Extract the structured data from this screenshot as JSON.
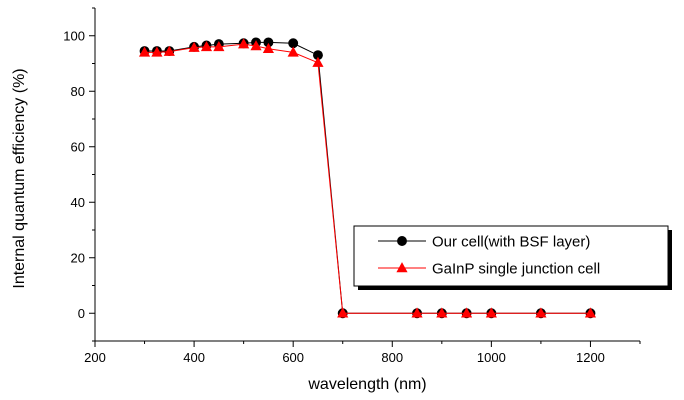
{
  "chart_data": {
    "type": "line",
    "xlabel": "wavelength (nm)",
    "ylabel": "Internal quantum efficiency (%)",
    "xlim": [
      200,
      1300
    ],
    "ylim": [
      -10,
      110
    ],
    "x_ticks": [
      200,
      400,
      600,
      800,
      1000,
      1200
    ],
    "x_tick_labels": [
      "200",
      "400",
      "600",
      "800",
      "1000",
      "1200"
    ],
    "y_ticks": [
      0,
      20,
      40,
      60,
      80,
      100
    ],
    "y_tick_labels": [
      "0",
      "20",
      "40",
      "60",
      "80",
      "100"
    ],
    "grid": false,
    "legend_position": "center-right",
    "series": [
      {
        "name": "Our cell(with BSF layer)",
        "color": "#000000",
        "marker": "circle",
        "x": [
          300,
          325,
          350,
          400,
          425,
          450,
          500,
          525,
          550,
          600,
          650,
          700,
          850,
          900,
          950,
          1000,
          1100,
          1200
        ],
        "y": [
          94.5,
          94.5,
          94.5,
          96,
          96.5,
          97,
          97.3,
          97.6,
          97.6,
          97.3,
          93,
          0,
          0,
          0,
          0,
          0,
          0,
          0
        ]
      },
      {
        "name": "GaInP single junction cell",
        "color": "#ff0000",
        "marker": "triangle",
        "x": [
          300,
          325,
          350,
          400,
          425,
          450,
          500,
          525,
          550,
          600,
          650,
          700,
          850,
          900,
          950,
          1000,
          1100,
          1200
        ],
        "y": [
          94,
          94,
          94.3,
          95.7,
          96,
          96,
          97,
          96.3,
          95.3,
          94,
          90.3,
          0,
          0,
          0,
          0,
          0,
          0,
          0
        ]
      }
    ]
  }
}
